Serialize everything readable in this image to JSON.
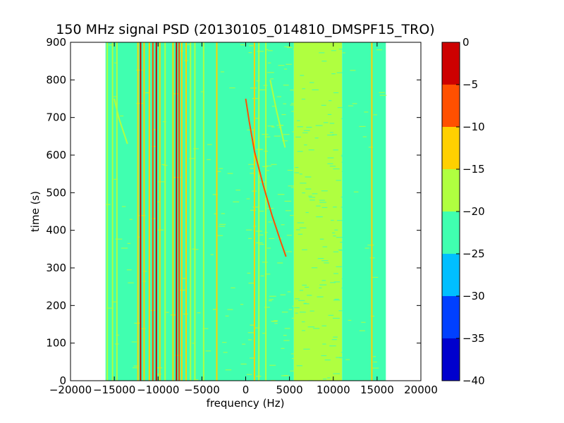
{
  "chart_data": {
    "type": "heatmap",
    "title": "150 MHz signal PSD (20130105_014810_DMSPF15_TRO)",
    "xlabel": "frequency (Hz)",
    "ylabel": "time (s)",
    "xlim": [
      -20000,
      20000
    ],
    "ylim": [
      0,
      900
    ],
    "x_ticks": [
      -20000,
      -15000,
      -10000,
      -5000,
      0,
      5000,
      10000,
      15000,
      20000
    ],
    "x_tick_labels": [
      "−20000",
      "−15000",
      "−10000",
      "−5000",
      "0",
      "5000",
      "10000",
      "15000",
      "20000"
    ],
    "y_ticks": [
      0,
      100,
      200,
      300,
      400,
      500,
      600,
      700,
      800,
      900
    ],
    "y_tick_labels": [
      "0",
      "100",
      "200",
      "300",
      "400",
      "500",
      "600",
      "700",
      "800",
      "900"
    ],
    "data_extent_x": [
      -16000,
      16000
    ],
    "colorbar": {
      "range": [
        -40,
        0
      ],
      "levels": [
        -40,
        -35,
        -30,
        -25,
        -20,
        -15,
        -10,
        -5,
        0
      ],
      "tick_labels": [
        "−40",
        "−35",
        "−30",
        "−25",
        "−20",
        "−15",
        "−10",
        "−5",
        "0"
      ],
      "colors": [
        "#0000cd",
        "#0040ff",
        "#00bfff",
        "#40ffb0",
        "#b0ff40",
        "#ffd000",
        "#ff5000",
        "#cd0000"
      ]
    },
    "background_bands": [
      {
        "x": [
          -16000,
          5500
        ],
        "level": -22.5
      },
      {
        "x": [
          5500,
          11000
        ],
        "level": -17.5
      },
      {
        "x": [
          11000,
          16000
        ],
        "level": -22.5
      }
    ],
    "vertical_lines": [
      {
        "x": -15800,
        "level": -17.5
      },
      {
        "x": -15200,
        "level": -17.5
      },
      {
        "x": -14700,
        "level": -17.5
      },
      {
        "x": -12300,
        "level": -12.5
      },
      {
        "x": -12000,
        "level": -2.5
      },
      {
        "x": -11600,
        "level": -12.5
      },
      {
        "x": -11000,
        "level": -12.5
      },
      {
        "x": -10600,
        "level": -7.5
      },
      {
        "x": -10200,
        "level": -2.5
      },
      {
        "x": -9800,
        "level": -12.5
      },
      {
        "x": -9200,
        "level": -17.5
      },
      {
        "x": -8300,
        "level": -12.5
      },
      {
        "x": -7900,
        "level": -2.5
      },
      {
        "x": -7600,
        "level": -7.5
      },
      {
        "x": -7300,
        "level": -12.5
      },
      {
        "x": -6800,
        "level": -12.5
      },
      {
        "x": -6300,
        "level": -17.5
      },
      {
        "x": -5800,
        "level": -17.5
      },
      {
        "x": -4800,
        "level": -17.5
      },
      {
        "x": -3300,
        "level": -12.5
      },
      {
        "x": 1000,
        "level": -12.5
      },
      {
        "x": 1500,
        "level": -17.5
      },
      {
        "x": 2300,
        "level": -17.5
      },
      {
        "x": 14400,
        "level": -12.5
      }
    ],
    "curves": [
      {
        "name": "",
        "level": -7.5,
        "points": [
          [
            0,
            750
          ],
          [
            400,
            690
          ],
          [
            1000,
            610
          ],
          [
            2000,
            520
          ],
          [
            3000,
            440
          ],
          [
            4000,
            370
          ],
          [
            4600,
            330
          ]
        ]
      },
      {
        "name": "",
        "level": -17.5,
        "points": [
          [
            -15000,
            750
          ],
          [
            -14500,
            700
          ],
          [
            -13500,
            630
          ]
        ]
      },
      {
        "name": "",
        "level": -17.5,
        "points": [
          [
            2800,
            800
          ],
          [
            3500,
            720
          ],
          [
            4500,
            620
          ]
        ]
      }
    ]
  }
}
